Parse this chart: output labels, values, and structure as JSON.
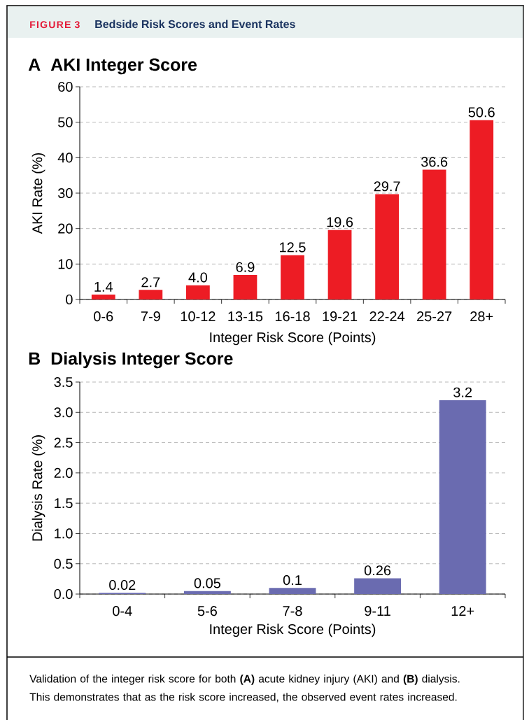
{
  "chart_data": [
    {
      "type": "bar",
      "title": "AKI Integer Score",
      "xlabel": "Integer Risk Score (Points)",
      "ylabel": "AKI Rate (%)",
      "categories": [
        "0-6",
        "7-9",
        "10-12",
        "13-15",
        "16-18",
        "19-21",
        "22-24",
        "25-27",
        "28+"
      ],
      "values": [
        1.4,
        2.7,
        4.0,
        6.9,
        12.5,
        19.6,
        29.7,
        36.6,
        50.6
      ],
      "value_labels": [
        "1.4",
        "2.7",
        "4.0",
        "6.9",
        "12.5",
        "19.6",
        "29.7",
        "36.6",
        "50.6"
      ],
      "color": "#ed1c24",
      "ylim": [
        0,
        60
      ],
      "yticks": [
        0,
        10,
        20,
        30,
        40,
        50,
        60
      ],
      "grid": "y",
      "annotations": [
        "FIGURE 3",
        "Bedside Risk Scores and Event Rates",
        "A"
      ]
    },
    {
      "type": "bar",
      "title": "Dialysis Integer Score",
      "xlabel": "Integer Risk Score (Points)",
      "ylabel": "Dialysis Rate (%)",
      "categories": [
        "0-4",
        "5-6",
        "7-8",
        "9-11",
        "12+"
      ],
      "values": [
        0.02,
        0.05,
        0.1,
        0.26,
        3.2
      ],
      "value_labels": [
        "0.02",
        "0.05",
        "0.1",
        "0.26",
        "3.2"
      ],
      "color": "#6a6bb0",
      "ylim": [
        0,
        3.5
      ],
      "yticks": [
        {
          "value": 0,
          "label": "0.0"
        },
        0.5,
        {
          "value": 1,
          "label": "1.0"
        },
        1.5,
        {
          "value": 2,
          "label": "2.0"
        },
        2.5,
        {
          "value": 3,
          "label": "3.0"
        },
        3.5
      ],
      "grid": "y",
      "annotations": [
        "B",
        "Validation of the integer risk score for both **(A)** acute kidney injury (AKI) and **(B)** dialysis. This demonstrates that as the risk score increased, the observed event rates increased."
      ]
    }
  ]
}
